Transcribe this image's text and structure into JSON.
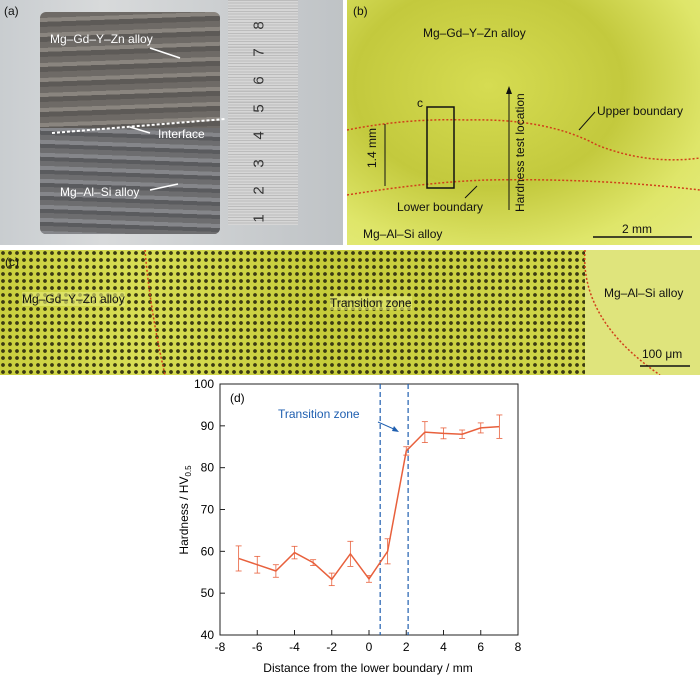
{
  "panels": [
    {
      "label": "(a)",
      "annotations": [
        "Mg–Gd–Y–Zn alloy",
        "Interface",
        "Mg–Al–Si alloy"
      ],
      "ruler": [
        "1",
        "2",
        "3",
        "4",
        "5",
        "6",
        "7",
        "8"
      ]
    },
    {
      "label": "(b)",
      "annotations": [
        "Mg–Gd–Y–Zn alloy",
        "c",
        "1.4 mm",
        "Hardness test location",
        "Upper boundary",
        "Lower boundary",
        "Mg–Al–Si alloy",
        "2 mm"
      ]
    },
    {
      "label": "(c)",
      "annotations": [
        "Mg–Gd–Y–Zn alloy",
        "Transition zone",
        "Mg–Al–Si alloy",
        "100 μm"
      ]
    }
  ],
  "chart_data": {
    "type": "line",
    "panel_label": "(d)",
    "xlabel": "Distance from the lower boundary / mm",
    "ylabel": "Hardness / HV",
    "ylabel_subscript": "0.5",
    "annotation": "Transition zone",
    "transition_zone": [
      0.6,
      2.1
    ],
    "boundary_color": "#1f5fb0",
    "x": [
      -7,
      -6,
      -5,
      -4,
      -3,
      -2,
      -1,
      0,
      1,
      2,
      3,
      4,
      5,
      6,
      7
    ],
    "series": [
      {
        "name": "Hardness",
        "color": "#e8603c",
        "values": [
          58.3,
          56.8,
          55.3,
          59.7,
          57.3,
          53.3,
          59.4,
          53.4,
          60,
          84,
          88.5,
          88.2,
          88,
          89.5,
          89.8
        ],
        "errors": [
          3,
          2,
          1.5,
          1.5,
          0.7,
          1.5,
          3,
          0.8,
          3,
          1,
          2.5,
          1.3,
          1,
          1.2,
          2.8
        ]
      }
    ],
    "xlim": [
      -8,
      8
    ],
    "xticks": [
      -8,
      -6,
      -4,
      -2,
      0,
      2,
      4,
      6,
      8
    ],
    "ylim": [
      40,
      100
    ],
    "yticks": [
      40,
      50,
      60,
      70,
      80,
      90,
      100
    ]
  }
}
